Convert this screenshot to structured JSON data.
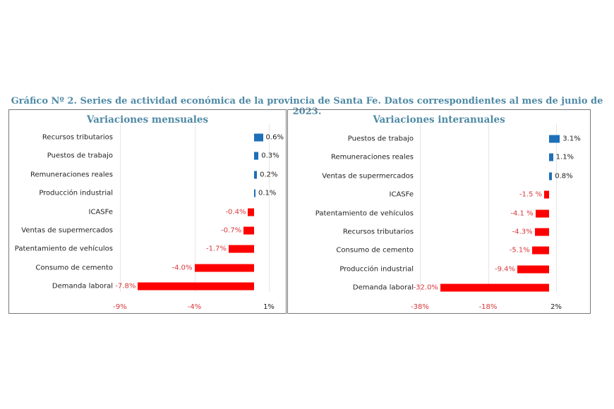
{
  "title": "Gráfico Nº 2. Series de actividad económica de la provincia de Santa Fe. Datos correspondientes al mes de junio de 2023.",
  "colors": {
    "positive": "#1f6fb8",
    "negative": "#ff0000",
    "negative_label": "#d9383a",
    "title": "#4f8aa6"
  },
  "chart_data": [
    {
      "type": "bar",
      "orientation": "horizontal",
      "title": "Variaciones mensuales",
      "categories": [
        "Recursos tributarios",
        "Puestos de trabajo",
        "Remuneraciones reales",
        "Producción industrial",
        "ICASFe",
        "Ventas de supermercados",
        "Patentamiento de vehículos",
        "Consumo de cemento",
        "Demanda laboral"
      ],
      "values": [
        0.6,
        0.3,
        0.2,
        0.1,
        -0.4,
        -0.7,
        -1.7,
        -4.0,
        -7.8
      ],
      "labels": [
        "0.6%",
        "0.3%",
        "0.2%",
        "0.1%",
        "-0.4%",
        "-0.7%",
        "-1.7%",
        "-4.0%",
        "-7.8%"
      ],
      "xticks": [
        -9,
        -4,
        1
      ],
      "xtick_labels": [
        "-9%",
        "-4%",
        "1%"
      ],
      "xlim": [
        -9,
        1
      ],
      "grid": true
    },
    {
      "type": "bar",
      "orientation": "horizontal",
      "title": "Variaciones interanuales",
      "categories": [
        "Puestos de trabajo",
        "Remuneraciones reales",
        "Ventas de supermercados",
        "ICASFe",
        "Patentamiento de vehículos",
        "Recursos tributarios",
        "Consumo de cemento",
        "Producción industrial",
        "Demanda laboral"
      ],
      "values": [
        3.1,
        1.1,
        0.8,
        -1.5,
        -4.1,
        -4.3,
        -5.1,
        -9.4,
        -32.0
      ],
      "labels": [
        "3.1%",
        "1.1%",
        "0.8%",
        "-1.5 %",
        "-4.1 %",
        "-4.3%",
        "-5.1%",
        "-9.4%",
        "-32.0%"
      ],
      "xticks": [
        -38,
        -18,
        2
      ],
      "xtick_labels": [
        "-38%",
        "-18%",
        "2%"
      ],
      "xlim": [
        -38,
        2
      ],
      "grid": true
    }
  ]
}
